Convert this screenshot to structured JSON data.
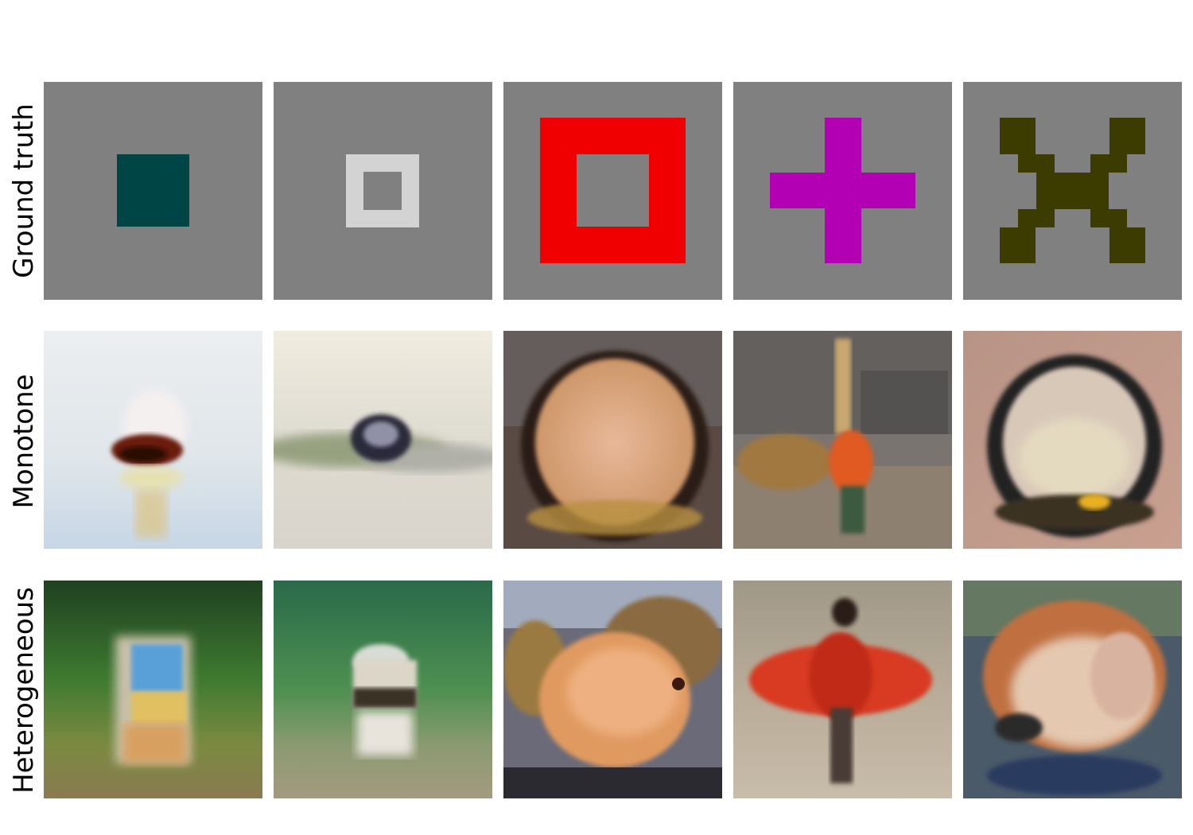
{
  "row_labels": {
    "ground_truth": "Ground truth",
    "monotone": "Monotone",
    "heterogeneous": "Heterogeneous"
  },
  "colors": {
    "background_gray": "#808080",
    "shape_teal": "#004545",
    "shape_light_gray": "#d3d3d3",
    "shape_red": "#f00000",
    "shape_magenta": "#b400b4",
    "shape_olive": "#3c3c00"
  },
  "ground_truth_shapes": [
    "filled-square",
    "hollow-square-small",
    "hollow-square-large",
    "plus-cross",
    "x-cross"
  ]
}
